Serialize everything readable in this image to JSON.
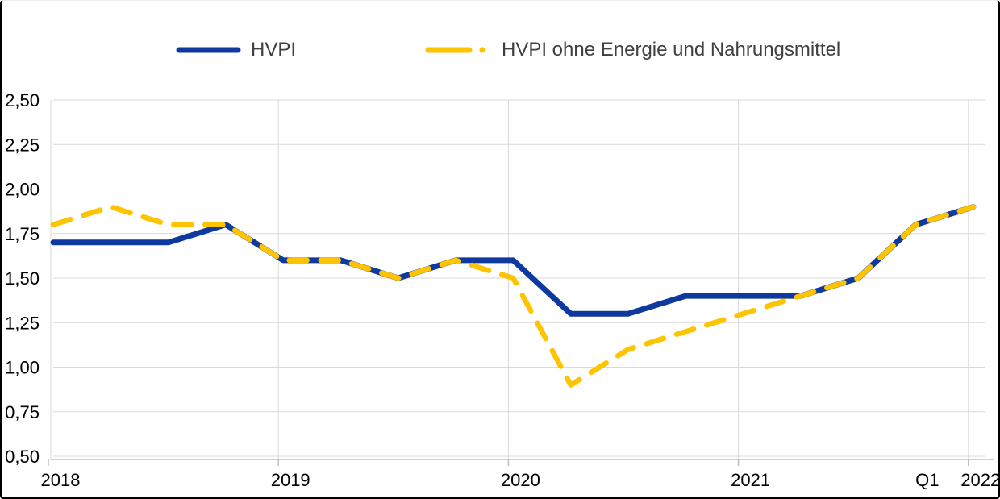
{
  "chart_data": {
    "type": "line",
    "title": "",
    "x": [
      "2018 Q1",
      "2018 Q2",
      "2018 Q3",
      "2018 Q4",
      "2019 Q1",
      "2019 Q2",
      "2019 Q3",
      "2019 Q4",
      "2020 Q1",
      "2020 Q2",
      "2020 Q3",
      "2020 Q4",
      "2021 Q1",
      "2021 Q2",
      "2021 Q3",
      "2021 Q4",
      "2022 Q1"
    ],
    "series": [
      {
        "name": "HVPI",
        "style": "solid",
        "color": "#0E3A9F",
        "values": [
          1.7,
          1.7,
          1.7,
          1.8,
          1.6,
          1.6,
          1.5,
          1.6,
          1.6,
          1.3,
          1.3,
          1.4,
          1.4,
          1.4,
          1.5,
          1.8,
          1.9
        ]
      },
      {
        "name": "HVPI ohne Energie und Nahrungsmittel",
        "style": "dashed",
        "color": "#FEC400",
        "values": [
          1.8,
          1.9,
          1.8,
          1.8,
          1.6,
          1.6,
          1.5,
          1.6,
          1.5,
          0.9,
          1.1,
          1.2,
          1.3,
          1.4,
          1.5,
          1.8,
          1.9
        ]
      }
    ],
    "ylim": [
      0.5,
      2.5
    ],
    "y_tick_labels": [
      "2,50",
      "2,25",
      "2,00",
      "1,75",
      "1,50",
      "1,25",
      "1,00",
      "0,75",
      "0,50"
    ],
    "x_axis_labels": [
      {
        "text": "2018",
        "q": 0
      },
      {
        "text": "2019",
        "q": 4
      },
      {
        "text": "2020",
        "q": 8
      },
      {
        "text": "2021",
        "q": 12
      },
      {
        "text": "Q1",
        "q": 15.2
      },
      {
        "text": "2022",
        "q": 16
      }
    ],
    "grid": true,
    "legend_position": "top"
  },
  "colors": {
    "background": "#FFFFFF",
    "grid": "#D9D9D9",
    "axis": "#BFBFBF",
    "tick_label": "#000000",
    "legend_text": "#404040",
    "frame": "#000000",
    "hvpi_line": "#0E3A9F",
    "core_line": "#FEC400"
  }
}
